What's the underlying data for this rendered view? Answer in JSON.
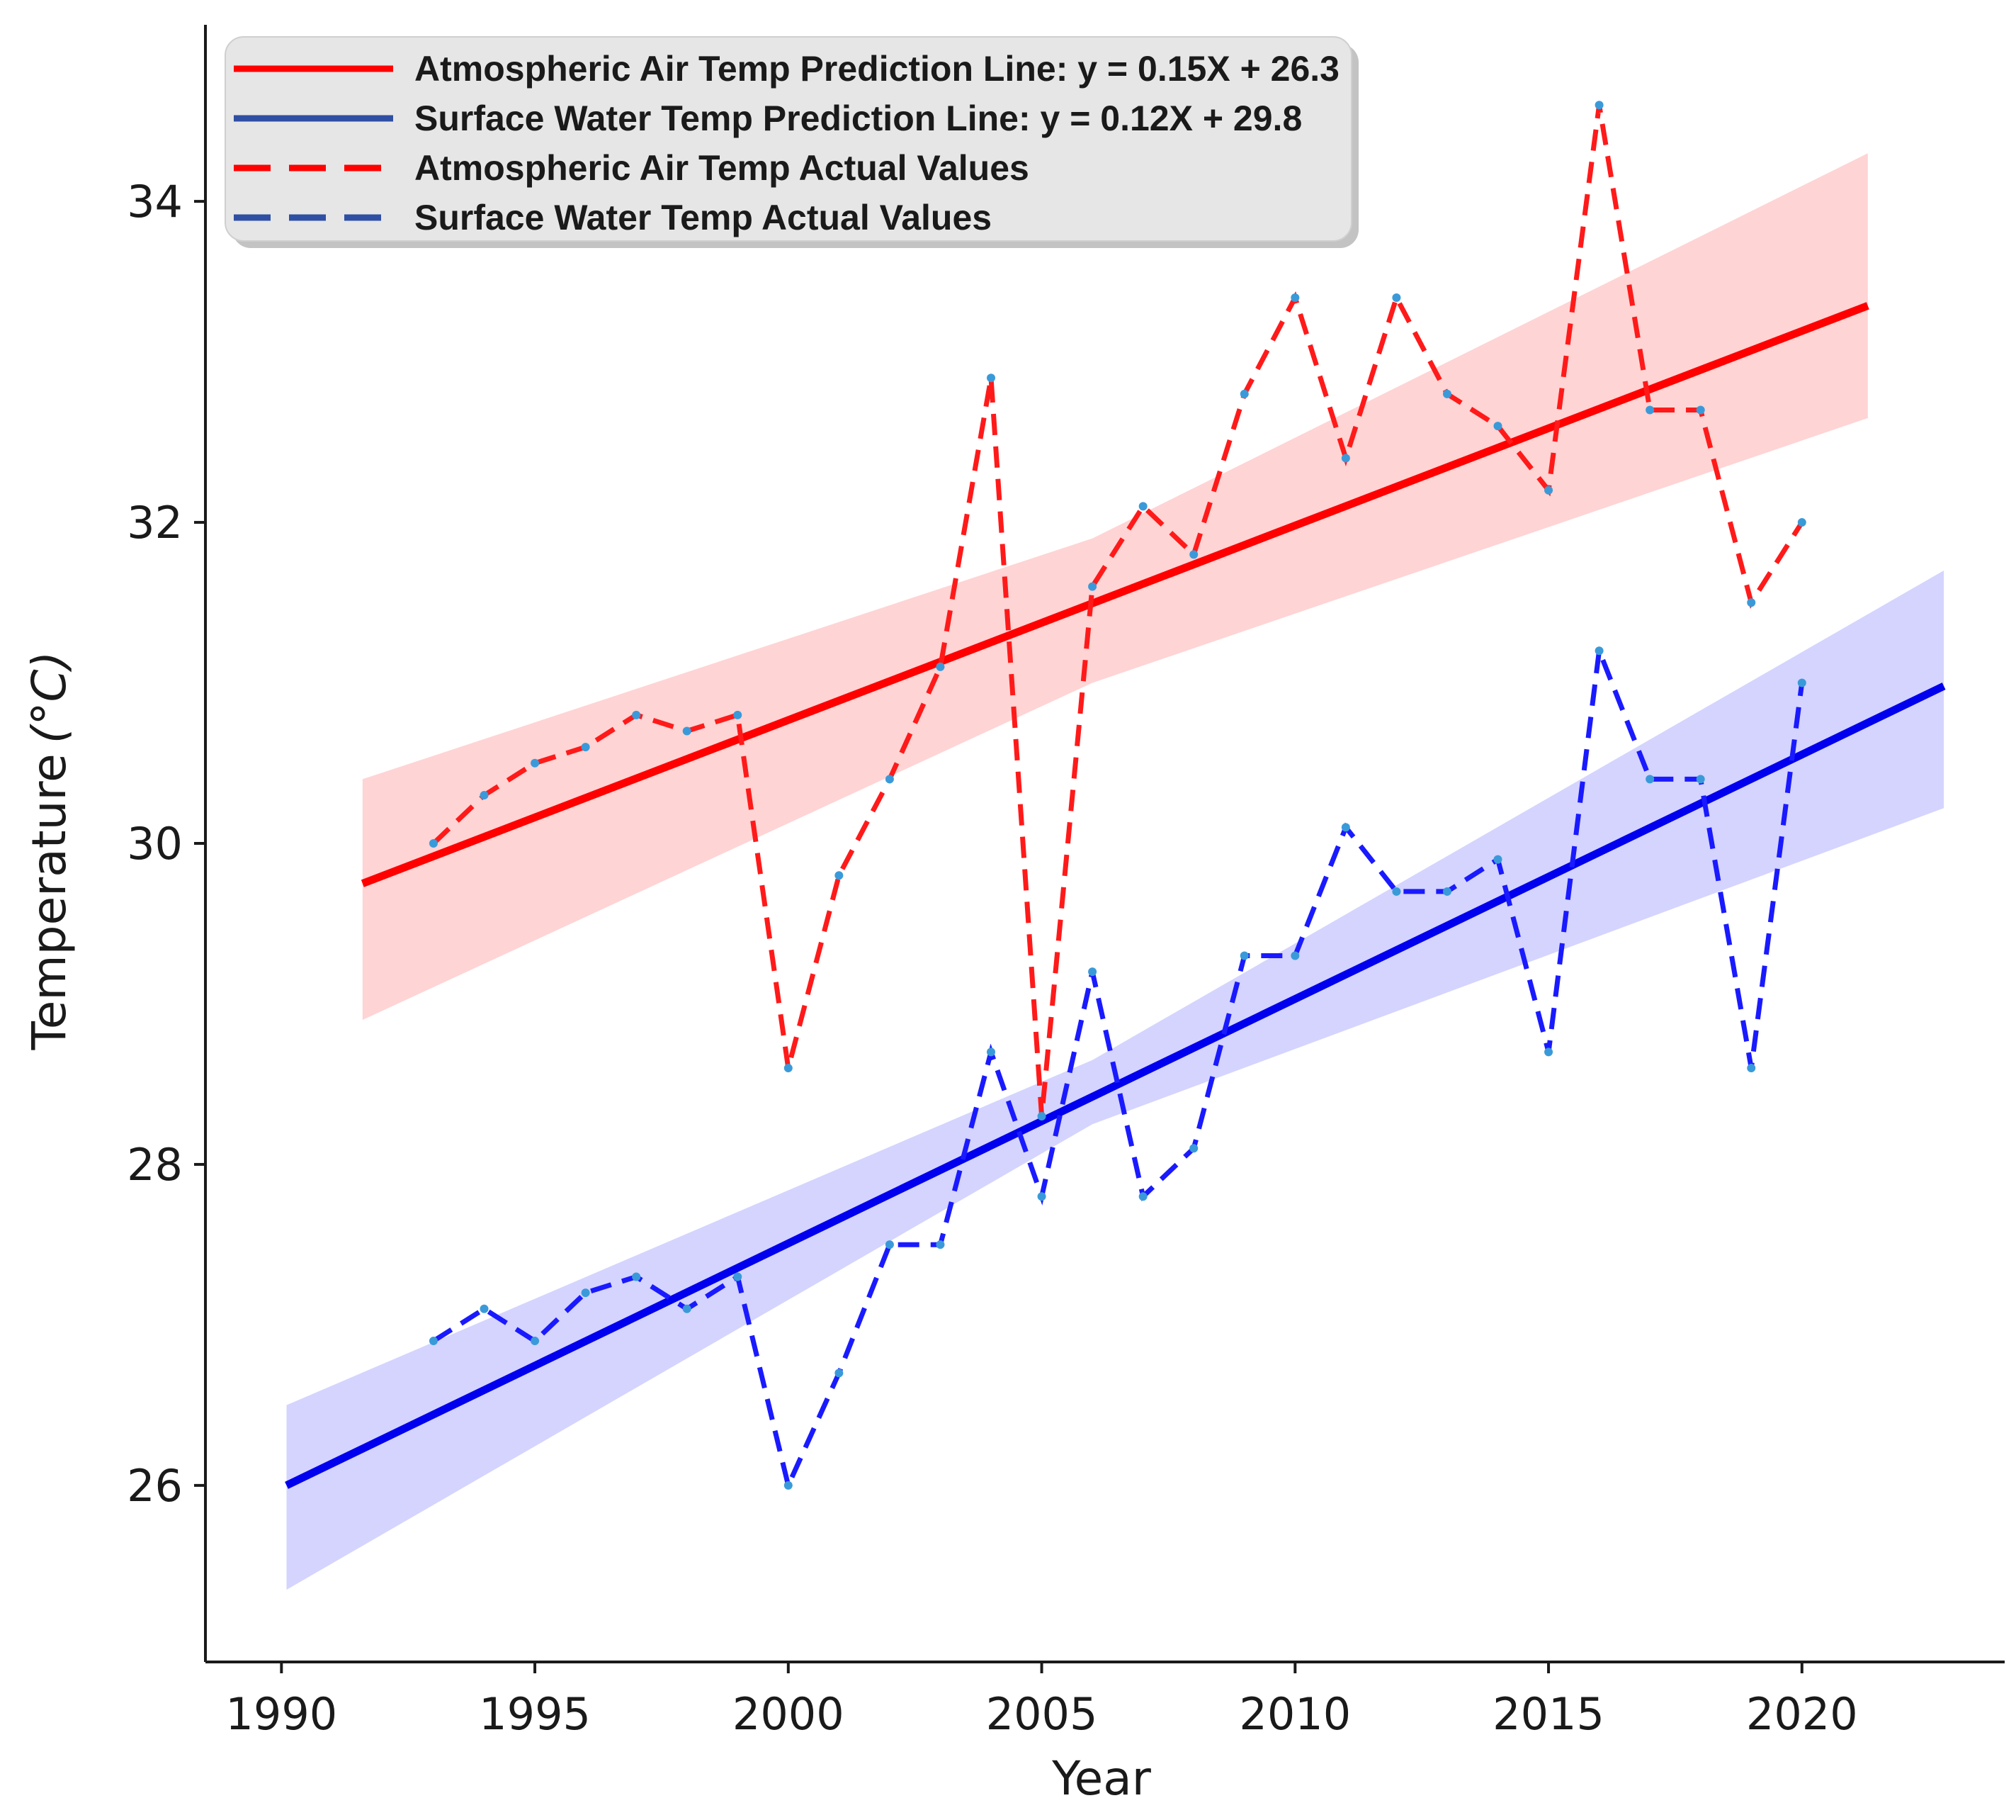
{
  "chart_data": {
    "type": "line",
    "xlabel": "Year",
    "ylabel": "Temperature",
    "ylabel_unit": "(°C)",
    "xlim": [
      1988.5,
      2024.0
    ],
    "ylim": [
      24.9,
      35.1
    ],
    "x_ticks": [
      1990,
      1995,
      2000,
      2005,
      2010,
      2015,
      2020
    ],
    "y_ticks": [
      26,
      28,
      30,
      32,
      34
    ],
    "grid": false,
    "legend_position": "top-left",
    "legend": [
      {
        "label": "Atmospheric Air Temp Prediction Line: y = 0.15X + 26.3",
        "style": "solid",
        "color": "#ff0000"
      },
      {
        "label": "Surface Water Temp Prediction Line: y = 0.12X + 29.8",
        "style": "solid",
        "color": "#2e4fa3"
      },
      {
        "label": "Atmospheric Air Temp Actual Values",
        "style": "dashed",
        "color": "#ff0000"
      },
      {
        "label": "Surface Water Temp Actual Values",
        "style": "dashed",
        "color": "#2e4fa3"
      }
    ],
    "series": [
      {
        "name": "Atmospheric Air Temp Actual Values",
        "style": "dashed",
        "color": "#ff1a1a",
        "x": [
          1993,
          1994,
          1995,
          1996,
          1997,
          1998,
          1999,
          2000,
          2001,
          2002,
          2003,
          2004,
          2005,
          2006,
          2007,
          2008,
          2009,
          2010,
          2011,
          2012,
          2013,
          2014,
          2015,
          2016,
          2017,
          2018,
          2019,
          2020
        ],
        "values": [
          30.0,
          30.3,
          30.5,
          30.6,
          30.8,
          30.7,
          30.8,
          28.6,
          29.8,
          30.4,
          31.1,
          32.9,
          28.3,
          31.6,
          32.1,
          31.8,
          32.8,
          33.4,
          32.4,
          33.4,
          32.8,
          32.6,
          32.2,
          34.6,
          32.7,
          32.7,
          31.5,
          32.0
        ]
      },
      {
        "name": "Surface Water Temp Actual Values",
        "style": "dashed",
        "color": "#1a1aff",
        "x": [
          1993,
          1994,
          1995,
          1996,
          1997,
          1998,
          1999,
          2000,
          2001,
          2002,
          2003,
          2004,
          2005,
          2006,
          2007,
          2008,
          2009,
          2010,
          2011,
          2012,
          2013,
          2014,
          2015,
          2016,
          2017,
          2018,
          2019,
          2020
        ],
        "values": [
          26.9,
          27.1,
          26.9,
          27.2,
          27.3,
          27.1,
          27.3,
          26.0,
          26.7,
          27.5,
          27.5,
          28.7,
          27.8,
          29.2,
          27.8,
          28.1,
          29.3,
          29.3,
          30.1,
          29.7,
          29.7,
          29.9,
          28.7,
          31.2,
          30.4,
          30.4,
          28.6,
          31.0
        ]
      },
      {
        "name": "Atmospheric Air Temp Prediction Line",
        "style": "solid",
        "color": "#ff0000",
        "x": [
          1991.6,
          2021.3
        ],
        "values": [
          29.75,
          33.35
        ],
        "ci_upper": [
          30.4,
          34.3
        ],
        "ci_lower": [
          28.9,
          32.65
        ],
        "ci_mid": [
          2006.0,
          31.9,
          31.0
        ],
        "ci_color": "#ffcccc"
      },
      {
        "name": "Surface Water Temp Prediction Line",
        "style": "solid",
        "color": "#0000ee",
        "x": [
          1990.1,
          2022.8
        ],
        "values": [
          26.0,
          30.98
        ],
        "ci_upper": [
          26.5,
          31.7
        ],
        "ci_lower": [
          25.35,
          30.22
        ],
        "ci_mid": [
          2006.0,
          28.65,
          28.25
        ],
        "ci_color": "#ccccff"
      }
    ]
  }
}
